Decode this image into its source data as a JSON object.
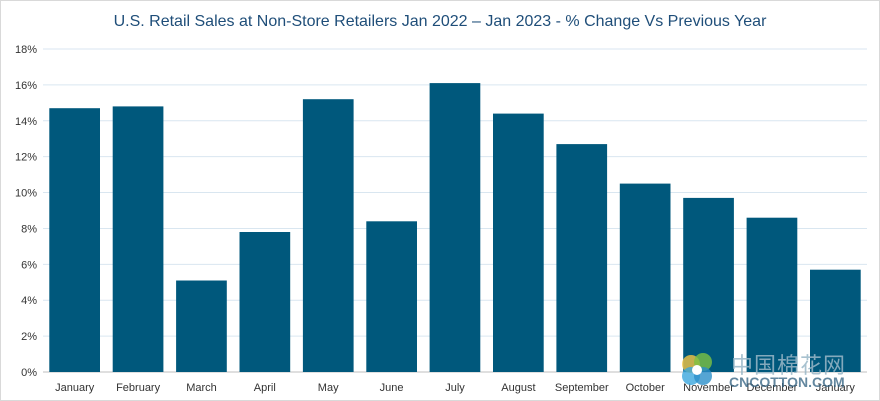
{
  "chart_data": {
    "type": "bar",
    "title": "U.S. Retail Sales at Non-Store Retailers Jan 2022 – Jan 2023 - % Change Vs Previous Year",
    "categories": [
      "January",
      "February",
      "March",
      "April",
      "May",
      "June",
      "July",
      "August",
      "September",
      "October",
      "November",
      "December",
      "January"
    ],
    "values": [
      14.7,
      14.8,
      5.1,
      7.8,
      15.2,
      8.4,
      16.1,
      14.4,
      12.7,
      10.5,
      9.7,
      8.6,
      5.7
    ],
    "ylim": [
      0,
      18
    ],
    "yticks": [
      "0%",
      "2%",
      "4%",
      "6%",
      "8%",
      "10%",
      "12%",
      "14%",
      "16%",
      "18%"
    ],
    "grid": true,
    "bar_color": "#00587c",
    "grid_color": "#d9e6f0"
  },
  "watermark": {
    "chinese": "中国棉花网",
    "english": "CNCOTTON.COM"
  }
}
